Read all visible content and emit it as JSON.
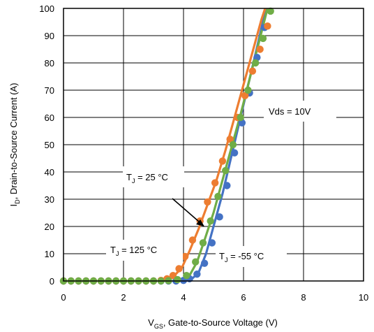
{
  "chart_data": {
    "type": "scatter",
    "title": "",
    "xlabel": {
      "main": "V",
      "sub": "GS",
      "rest": ", Gate-to-Source Voltage (V)"
    },
    "ylabel": {
      "main": "I",
      "sub": "D",
      "rest": ", Drain-to-Source Current (A)"
    },
    "xlim": [
      0,
      10
    ],
    "ylim": [
      0,
      100
    ],
    "xticks": [
      0,
      2,
      4,
      6,
      8,
      10
    ],
    "yticks": [
      0,
      10,
      20,
      30,
      40,
      50,
      60,
      70,
      80,
      90,
      100
    ],
    "grid": true,
    "annotations": {
      "vds": "Vds = 10V",
      "tj25": {
        "main": "T",
        "sub": "J",
        "rest": " = 25 °C"
      },
      "tj125": {
        "main": "T",
        "sub": "J",
        "rest": " = 125 °C"
      },
      "tjm55": {
        "main": "T",
        "sub": "J",
        "rest": " = -55 °C"
      }
    },
    "series": [
      {
        "color": "#4472c4",
        "markers": [
          [
            0,
            0
          ],
          [
            0.25,
            0
          ],
          [
            0.5,
            0
          ],
          [
            0.75,
            0
          ],
          [
            1,
            0
          ],
          [
            1.25,
            0
          ],
          [
            1.5,
            0
          ],
          [
            1.75,
            0
          ],
          [
            2,
            0
          ],
          [
            2.25,
            0
          ],
          [
            2.5,
            0
          ],
          [
            2.75,
            0
          ],
          [
            3,
            0
          ],
          [
            3.25,
            0
          ],
          [
            3.5,
            0
          ],
          [
            3.75,
            0
          ],
          [
            4,
            0.2
          ],
          [
            4.2,
            0.8
          ],
          [
            4.45,
            2.5
          ],
          [
            4.7,
            6.5
          ],
          [
            4.95,
            14
          ],
          [
            5.2,
            23.5
          ],
          [
            5.45,
            35
          ],
          [
            5.7,
            47
          ],
          [
            5.95,
            58
          ],
          [
            6.2,
            69
          ],
          [
            6.45,
            82
          ],
          [
            6.7,
            93
          ]
        ],
        "line": [
          [
            4.2,
            0
          ],
          [
            4.5,
            3
          ],
          [
            4.75,
            10
          ],
          [
            5.0,
            20
          ],
          [
            5.3,
            32
          ],
          [
            5.6,
            46
          ],
          [
            5.9,
            60
          ],
          [
            6.2,
            74
          ],
          [
            6.5,
            88
          ],
          [
            6.75,
            100
          ]
        ]
      },
      {
        "color": "#ed7d31",
        "markers": [
          [
            0,
            0
          ],
          [
            0.25,
            0
          ],
          [
            0.5,
            0
          ],
          [
            0.75,
            0
          ],
          [
            1,
            0
          ],
          [
            1.25,
            0
          ],
          [
            1.5,
            0
          ],
          [
            1.75,
            0
          ],
          [
            2,
            0
          ],
          [
            2.25,
            0
          ],
          [
            2.5,
            0
          ],
          [
            2.75,
            0
          ],
          [
            3,
            0
          ],
          [
            3.25,
            0.2
          ],
          [
            3.45,
            0.8
          ],
          [
            3.65,
            2
          ],
          [
            3.85,
            4.5
          ],
          [
            4.05,
            9
          ],
          [
            4.3,
            15
          ],
          [
            4.55,
            22
          ],
          [
            4.8,
            29
          ],
          [
            5.05,
            36
          ],
          [
            5.3,
            44
          ],
          [
            5.55,
            52
          ],
          [
            5.8,
            60
          ],
          [
            6.05,
            68
          ],
          [
            6.3,
            77
          ],
          [
            6.55,
            85
          ],
          [
            6.8,
            93.5
          ]
        ],
        "line": [
          [
            3.4,
            0
          ],
          [
            3.7,
            2
          ],
          [
            3.95,
            5
          ],
          [
            4.2,
            11
          ],
          [
            4.5,
            19
          ],
          [
            4.8,
            28
          ],
          [
            5.1,
            37
          ],
          [
            5.4,
            48
          ],
          [
            5.7,
            60
          ],
          [
            6.0,
            72
          ],
          [
            6.3,
            84
          ],
          [
            6.6,
            96
          ],
          [
            6.72,
            100
          ]
        ]
      },
      {
        "color": "#70ad47",
        "markers": [
          [
            0,
            0
          ],
          [
            0.25,
            0
          ],
          [
            0.5,
            0
          ],
          [
            0.75,
            0
          ],
          [
            1,
            0
          ],
          [
            1.25,
            0
          ],
          [
            1.5,
            0
          ],
          [
            1.75,
            0
          ],
          [
            2,
            0
          ],
          [
            2.25,
            0
          ],
          [
            2.5,
            0
          ],
          [
            2.75,
            0
          ],
          [
            3,
            0
          ],
          [
            3.25,
            0
          ],
          [
            3.5,
            0.1
          ],
          [
            3.8,
            0.5
          ],
          [
            4.1,
            2
          ],
          [
            4.4,
            7
          ],
          [
            4.65,
            14
          ],
          [
            4.9,
            22
          ],
          [
            5.15,
            31
          ],
          [
            5.4,
            40.5
          ],
          [
            5.65,
            50
          ],
          [
            5.9,
            60
          ],
          [
            6.15,
            70
          ],
          [
            6.4,
            80
          ],
          [
            6.65,
            89
          ],
          [
            6.9,
            99
          ]
        ],
        "line": [
          [
            3.9,
            0
          ],
          [
            4.2,
            2
          ],
          [
            4.45,
            7
          ],
          [
            4.7,
            15
          ],
          [
            5.0,
            25
          ],
          [
            5.3,
            37
          ],
          [
            5.6,
            49
          ],
          [
            5.9,
            61
          ],
          [
            6.2,
            74
          ],
          [
            6.5,
            87
          ],
          [
            6.8,
            100
          ]
        ]
      }
    ]
  }
}
